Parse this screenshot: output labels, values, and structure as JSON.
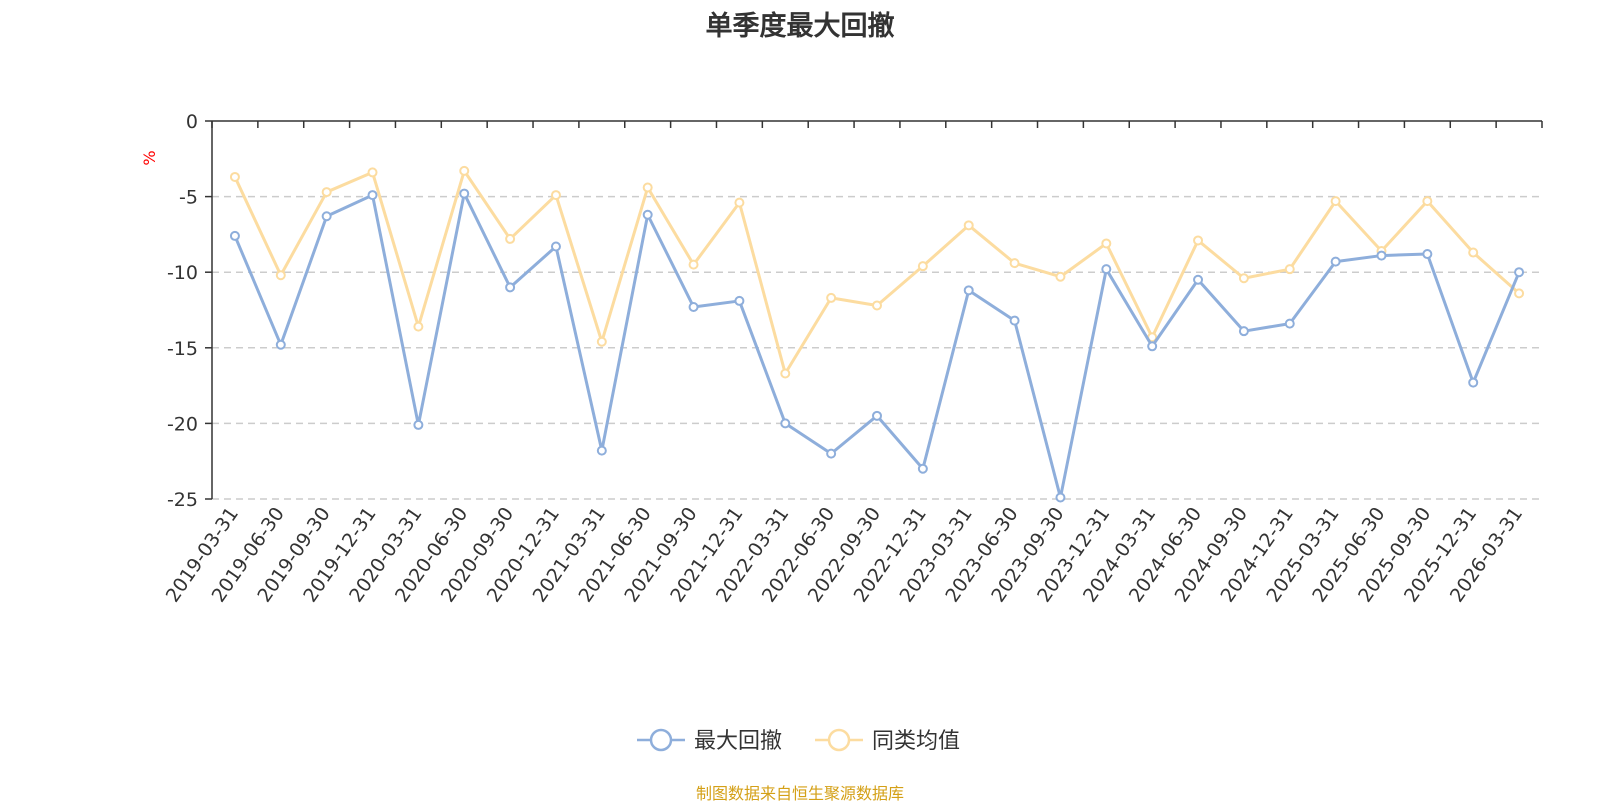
{
  "chart_data": {
    "type": "line",
    "title": "单季度最大回撤",
    "ylabel": "%",
    "xlabel": "",
    "ylim": [
      -25,
      0
    ],
    "yticks": [
      0,
      -5,
      -10,
      -15,
      -20,
      -25
    ],
    "grid": true,
    "legend_position": "bottom",
    "categories": [
      "2019-03-31",
      "2019-06-30",
      "2019-09-30",
      "2019-12-31",
      "2020-03-31",
      "2020-06-30",
      "2020-09-30",
      "2020-12-31",
      "2021-03-31",
      "2021-06-30",
      "2021-09-30",
      "2021-12-31",
      "2022-03-31",
      "2022-06-30",
      "2022-09-30",
      "2022-12-31",
      "2023-03-31",
      "2023-06-30",
      "2023-09-30",
      "2023-12-31",
      "2024-03-31",
      "2024-06-30",
      "2024-09-30",
      "2024-12-31",
      "2025-03-31",
      "2025-06-30",
      "2025-09-30",
      "2025-12-31",
      "2026-03-31"
    ],
    "series": [
      {
        "name": "最大回撤",
        "color": "#8eaedb",
        "values": [
          -7.6,
          -14.8,
          -6.3,
          -4.9,
          -20.1,
          -4.8,
          -11.0,
          -8.3,
          -21.8,
          -6.2,
          -12.3,
          -11.9,
          -20.0,
          -22.0,
          -19.5,
          -23.0,
          -11.2,
          -13.2,
          -24.9,
          -9.8,
          -14.9,
          -10.5,
          -13.9,
          -13.4,
          -9.3,
          -8.9,
          -8.8,
          -17.3,
          -10.0
        ]
      },
      {
        "name": "同类均值",
        "color": "#fcdca0",
        "values": [
          -3.7,
          -10.2,
          -4.7,
          -3.4,
          -13.6,
          -3.3,
          -7.8,
          -4.9,
          -14.6,
          -4.4,
          -9.5,
          -5.4,
          -16.7,
          -11.7,
          -12.2,
          -9.6,
          -6.9,
          -9.4,
          -10.3,
          -8.1,
          -14.3,
          -7.9,
          -10.4,
          -9.8,
          -5.3,
          -8.6,
          -5.3,
          -8.7,
          -11.4
        ]
      }
    ]
  },
  "source_note": "制图数据来自恒生聚源数据库",
  "axis_color": "#333333",
  "grid_color": "#cccccc",
  "ylabel_color": "#ff0000"
}
